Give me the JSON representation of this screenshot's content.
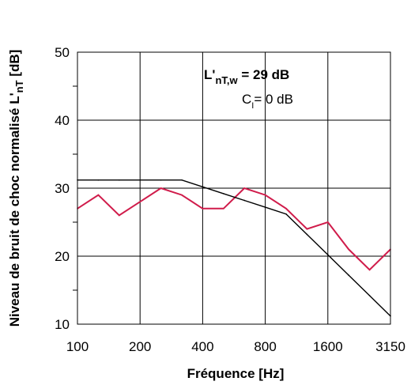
{
  "chart_data": {
    "type": "line",
    "xlabel": "Fréquence [Hz]",
    "ylabel_main": "Niveau de bruit de choc normalisé L'",
    "ylabel_sub": "nT",
    "ylabel_unit": " [dB]",
    "ylim": [
      10,
      50
    ],
    "yticks": [
      10,
      20,
      30,
      40,
      50
    ],
    "x_tick_labels": [
      "100",
      "200",
      "400",
      "800",
      "1600",
      "3150"
    ],
    "x": [
      "100",
      "125",
      "160",
      "200",
      "250",
      "315",
      "400",
      "500",
      "630",
      "800",
      "1000",
      "1250",
      "1600",
      "2000",
      "2500",
      "3150"
    ],
    "grid": true,
    "series": [
      {
        "values": [
          27,
          29,
          26,
          28,
          30,
          29,
          27,
          27,
          30,
          29,
          27,
          24,
          25,
          21,
          18,
          21
        ],
        "color": "#d01c4b"
      },
      {
        "values": [
          31.2,
          31.2,
          31.2,
          31.2,
          31.2,
          31.2,
          30.2,
          29.2,
          28.2,
          27.2,
          26.2,
          23.2,
          20.2,
          17.2,
          14.2,
          11.2
        ],
        "color": "#000000"
      }
    ],
    "annotations": {
      "main": "L'",
      "main_sub": "nT,w",
      "main_value": " = 29 dB",
      "second": "C",
      "second_sub": "I",
      "second_value": "= 0 dB"
    }
  }
}
